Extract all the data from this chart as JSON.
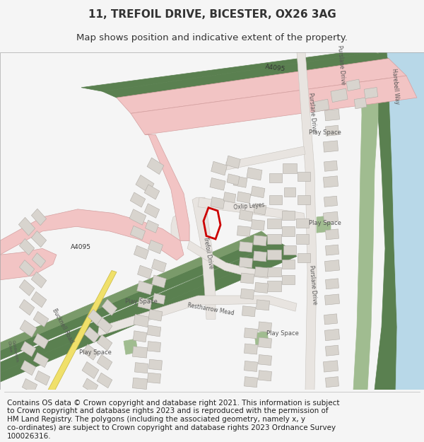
{
  "title_line1": "11, TREFOIL DRIVE, BICESTER, OX26 3AG",
  "title_line2": "Map shows position and indicative extent of the property.",
  "footer_lines": [
    "Contains OS data © Crown copyright and database right 2021. This information is subject",
    "to Crown copyright and database rights 2023 and is reproduced with the permission of",
    "HM Land Registry. The polygons (including the associated geometry, namely x, y",
    "co-ordinates) are subject to Crown copyright and database rights 2023 Ordnance Survey",
    "100026316."
  ],
  "bg_color": "#f5f5f5",
  "map_bg": "#f0eeeb",
  "title_fontsize": 11,
  "subtitle_fontsize": 9.5,
  "footer_fontsize": 7.5,
  "road_pink": "#f2c4c4",
  "road_pink_edge": "#d4a0a0",
  "road_white": "#e8e4e0",
  "road_white_edge": "#c8c4be",
  "road_yellow": "#f0e06a",
  "road_yellow_edge": "#c8b840",
  "green_dark": "#5a8050",
  "green_mid": "#7a9a6a",
  "green_light": "#a0bc90",
  "blue_water": "#b8d8e8",
  "building_fill": "#d8d4ce",
  "building_edge": "#b0aca6",
  "red_plot": "#cc0000",
  "text_dark": "#333333",
  "text_label": "#555555"
}
